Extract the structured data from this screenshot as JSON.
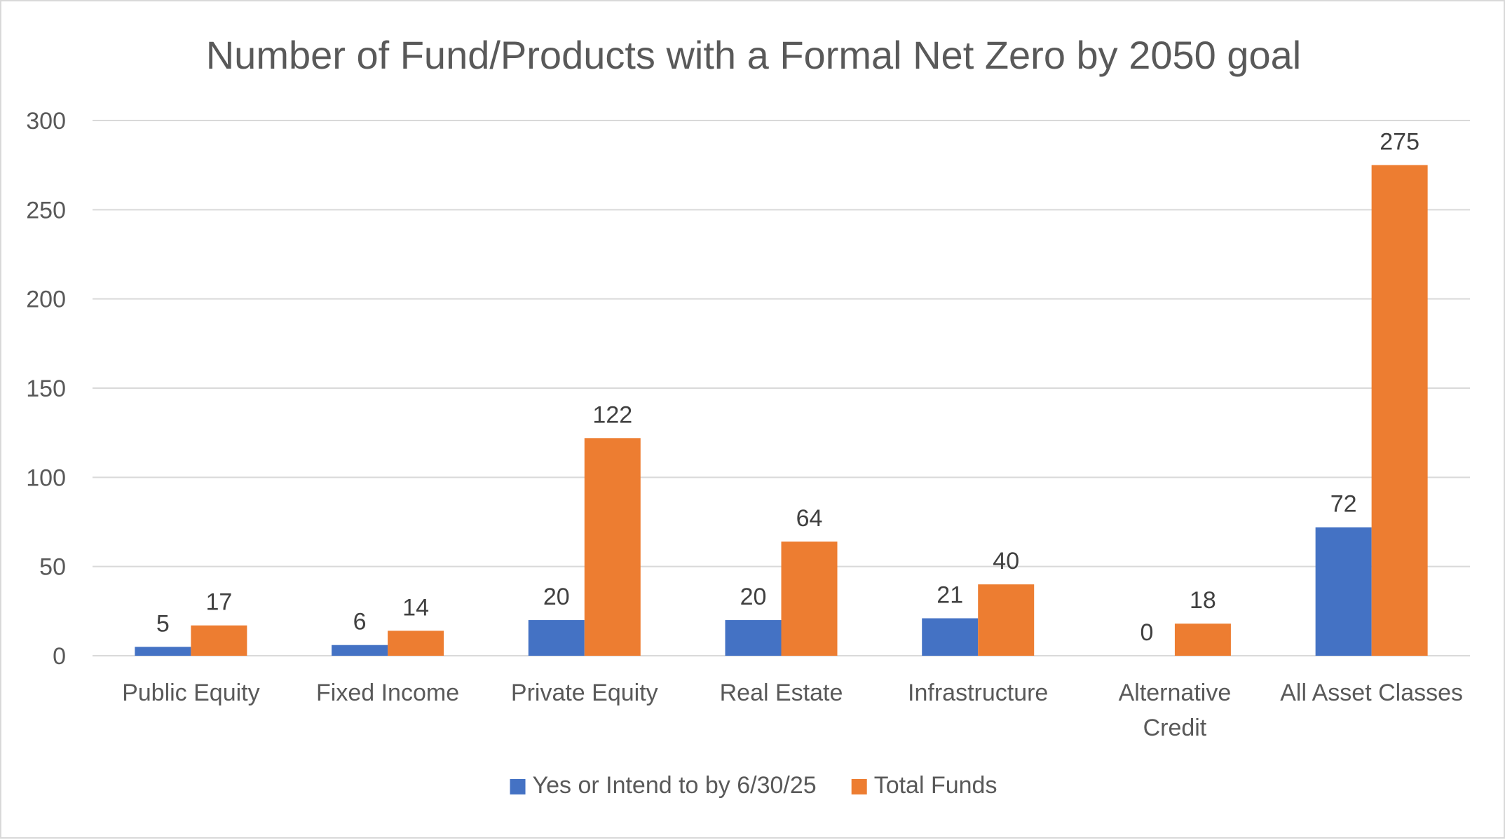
{
  "chart_data": {
    "type": "bar",
    "title": "Number of Fund/Products with a Formal Net Zero by 2050 goal",
    "xlabel": "",
    "ylabel": "",
    "ylim": [
      0,
      300
    ],
    "yticks": [
      0,
      50,
      100,
      150,
      200,
      250,
      300
    ],
    "grid": true,
    "legend_position": "bottom",
    "categories": [
      [
        "Public Equity"
      ],
      [
        "Fixed Income"
      ],
      [
        "Private Equity"
      ],
      [
        "Real Estate"
      ],
      [
        "Infrastructure"
      ],
      [
        "Alternative",
        "Credit"
      ],
      [
        "All Asset Classes"
      ]
    ],
    "series": [
      {
        "name": "Yes or Intend to by 6/30/25",
        "color": "#4472c4",
        "values": [
          5,
          6,
          20,
          20,
          21,
          0,
          72
        ]
      },
      {
        "name": "Total Funds",
        "color": "#ed7d31",
        "values": [
          17,
          14,
          122,
          64,
          40,
          18,
          275
        ]
      }
    ]
  }
}
